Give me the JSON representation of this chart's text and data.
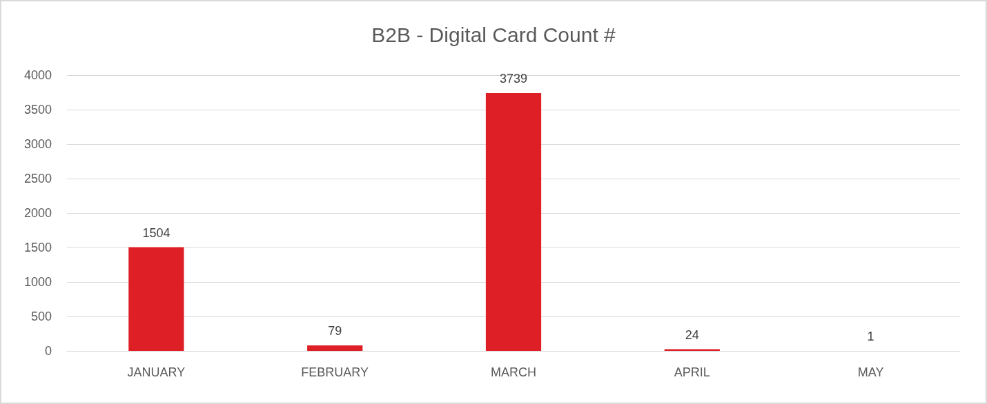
{
  "chart_data": {
    "type": "bar",
    "title": "B2B - Digital Card Count #",
    "categories": [
      "JANUARY",
      "FEBRUARY",
      "MARCH",
      "APRIL",
      "MAY"
    ],
    "values": [
      1504,
      79,
      3739,
      24,
      1
    ],
    "color": "#df1f26",
    "ylim": [
      0,
      4000
    ],
    "yticks": [
      0,
      500,
      1000,
      1500,
      2000,
      2500,
      3000,
      3500,
      4000
    ],
    "grid": "y",
    "data_labels": true
  }
}
